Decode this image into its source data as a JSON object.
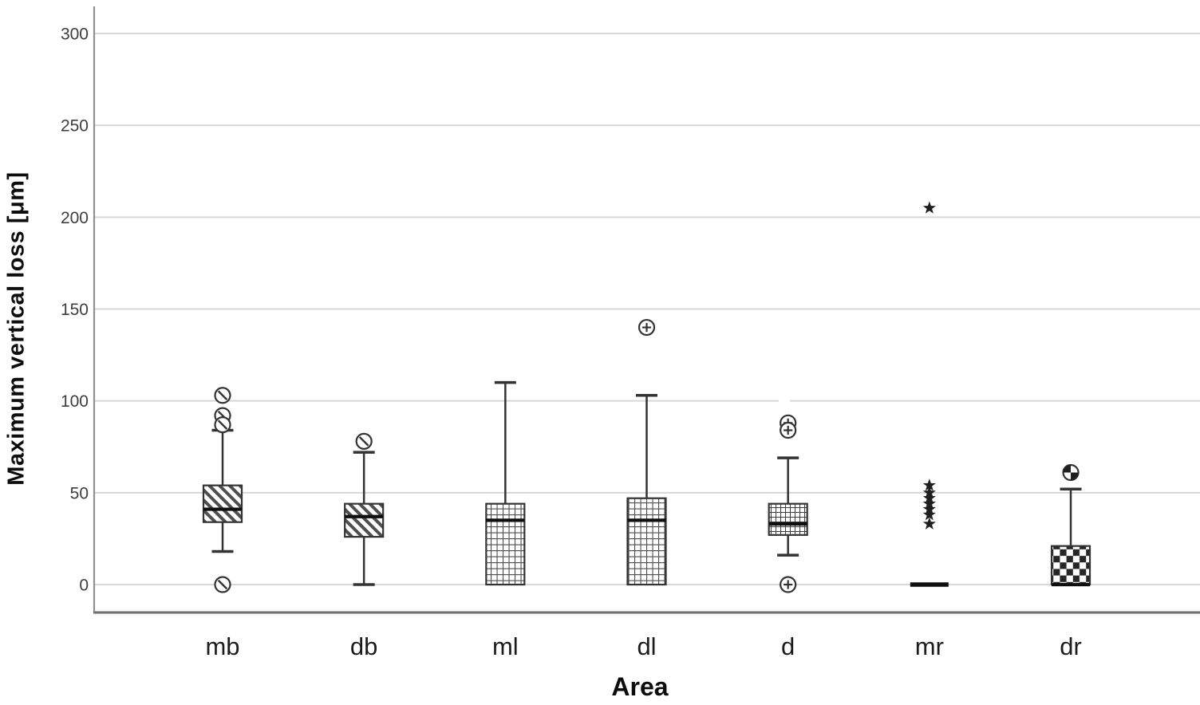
{
  "chart_data": {
    "type": "boxplot",
    "title": "",
    "xlabel": "Area",
    "ylabel": "Maximum vertical loss [μm]",
    "ylim": [
      -15,
      314
    ],
    "yticks": [
      0,
      50,
      100,
      150,
      200,
      250,
      300
    ],
    "grid": "horizontal",
    "legend": "none",
    "categories": [
      "mb",
      "db",
      "ml",
      "dl",
      "d",
      "mr",
      "dr"
    ],
    "series": [
      {
        "category": "mb",
        "pattern": "diagonal",
        "marker": "circle-slash",
        "q1": 34,
        "median": 41,
        "q3": 54,
        "whisker_low": 18,
        "whisker_high": 84,
        "outliers": [
          103,
          92,
          87,
          0
        ],
        "extremes": []
      },
      {
        "category": "db",
        "pattern": "diagonal",
        "marker": "circle-slash",
        "q1": 26,
        "median": 37,
        "q3": 44,
        "whisker_low": 0,
        "whisker_high": 72,
        "outliers": [
          78
        ],
        "extremes": []
      },
      {
        "category": "ml",
        "pattern": "grid",
        "marker": "circle-cross",
        "q1": 0,
        "median": 35,
        "q3": 44,
        "whisker_low": null,
        "whisker_high": 110,
        "outliers": [],
        "extremes": []
      },
      {
        "category": "dl",
        "pattern": "grid",
        "marker": "circle-cross",
        "q1": 0,
        "median": 35,
        "q3": 47,
        "whisker_low": null,
        "whisker_high": 103,
        "outliers": [
          140
        ],
        "extremes": []
      },
      {
        "category": "d",
        "pattern": "grid-fine",
        "marker": "circle-cross",
        "q1": 27,
        "median": 33,
        "q3": 44,
        "whisker_low": 16,
        "whisker_high": 69,
        "outliers": [
          88,
          84,
          0
        ],
        "extremes": []
      },
      {
        "category": "mr",
        "pattern": "none",
        "marker": "star",
        "q1": 0,
        "median": 0,
        "q3": 0,
        "whisker_low": null,
        "whisker_high": null,
        "outliers": [],
        "extremes": [
          205,
          54,
          50,
          47,
          44,
          41,
          38,
          33
        ]
      },
      {
        "category": "dr",
        "pattern": "checker",
        "marker": "circle-checker",
        "q1": 0,
        "median": 0,
        "q3": 21,
        "whisker_low": null,
        "whisker_high": 52,
        "outliers": [
          61
        ],
        "extremes": []
      }
    ],
    "colors": {
      "background": "#ffffff",
      "box_stroke": "#333333",
      "median": "#0f0f0f",
      "gridline": "#d7d7d7",
      "spine_left": "#909090",
      "spine_bottom": "#6e6e6e",
      "tick_text": "#3d3d3d",
      "category_text": "#1c1c1c",
      "pattern_dark": "#4f4f4f",
      "checker_dark": "#262626"
    }
  }
}
